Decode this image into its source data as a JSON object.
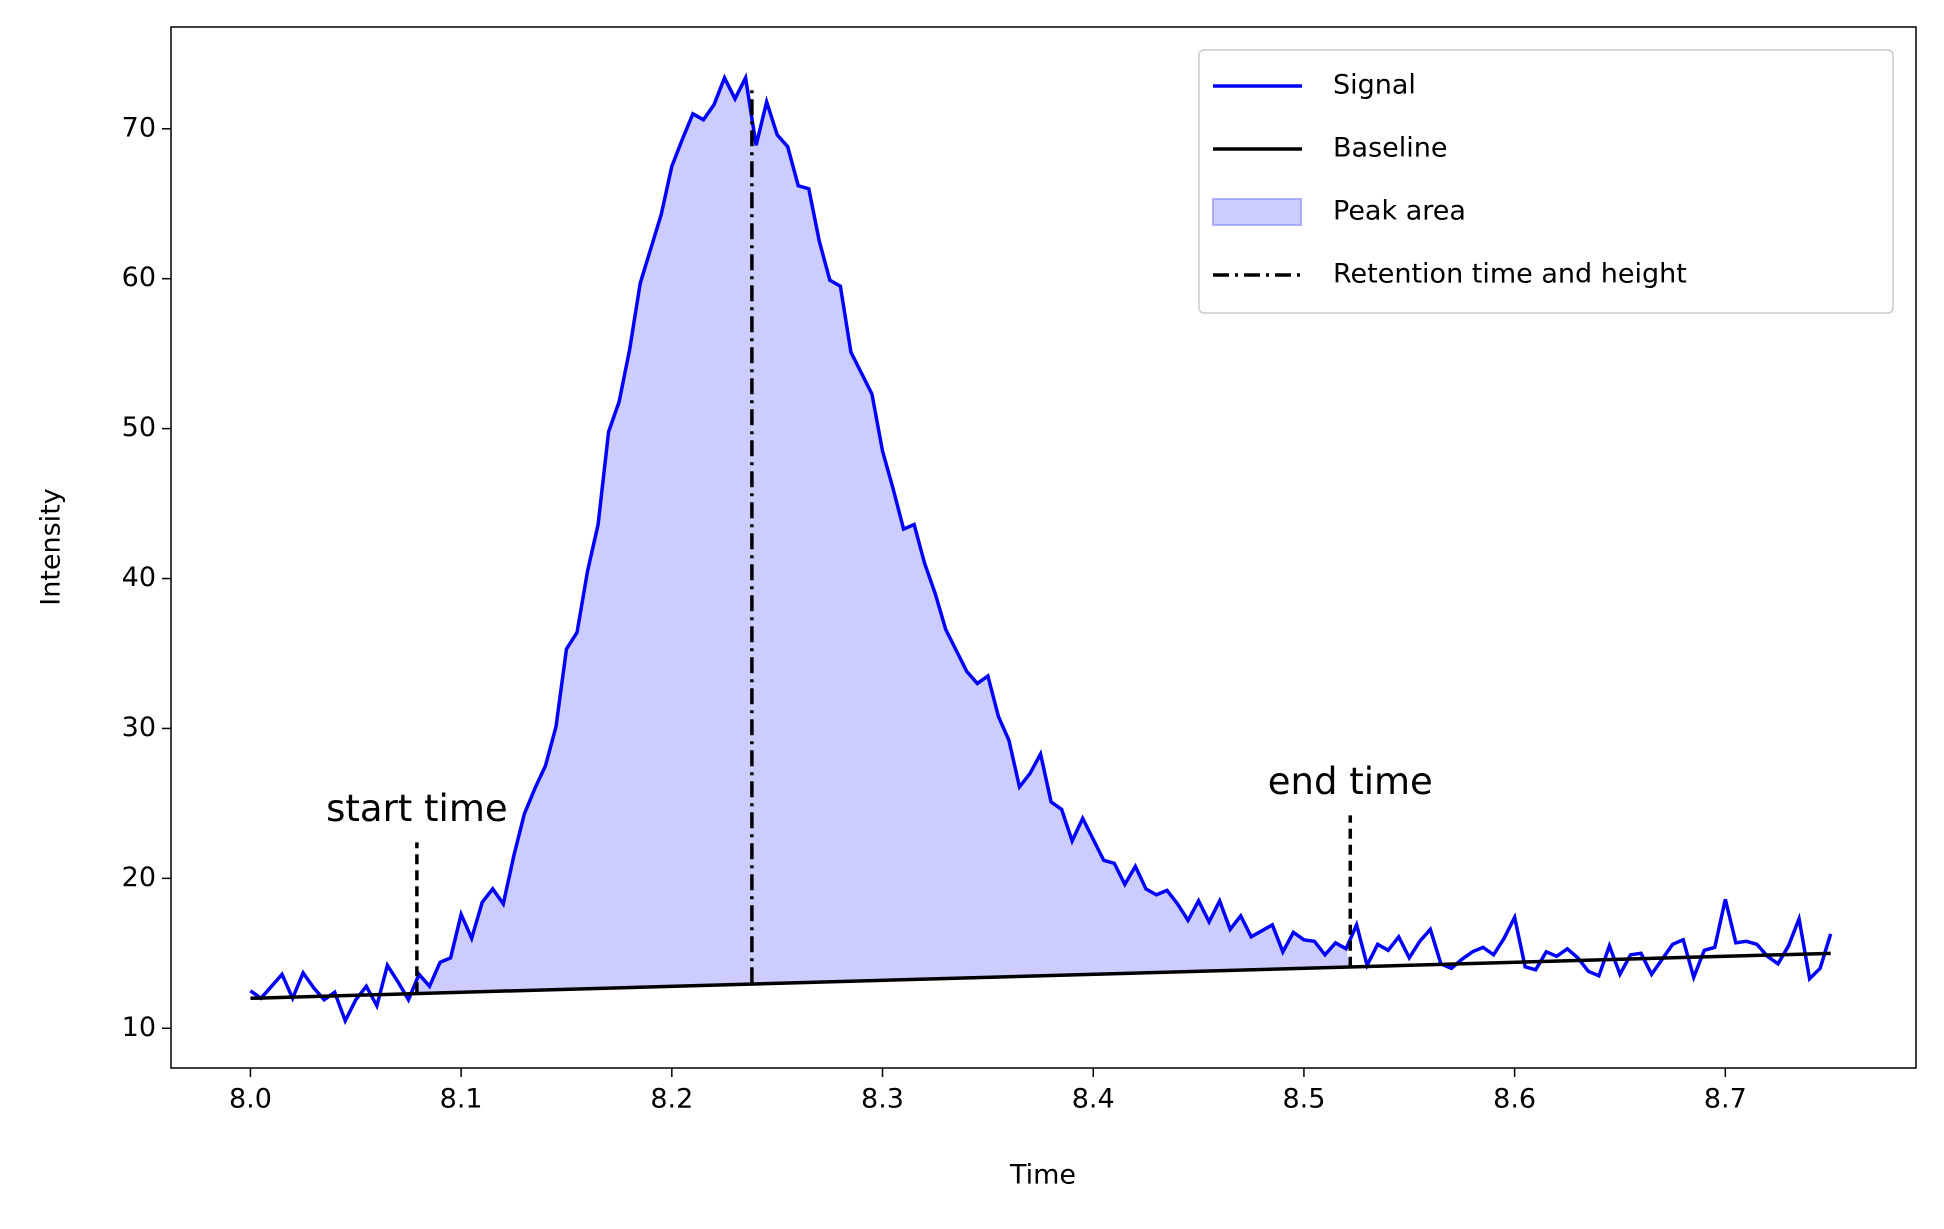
{
  "chart_data": {
    "type": "line",
    "xlabel": "Time",
    "ylabel": "Intensity",
    "xlim": [
      7.9623,
      8.7905
    ],
    "ylim": [
      7.35,
      76.79
    ],
    "xticks": [
      {
        "value": 8.0,
        "label": "8.0"
      },
      8.1,
      8.2,
      8.3,
      8.4,
      8.5,
      8.6,
      8.7
    ],
    "yticks": [
      10,
      20,
      30,
      40,
      50,
      60,
      70
    ],
    "legend": "upper right",
    "series": [
      {
        "name": "Signal",
        "color": "#0000ff",
        "style": "solid",
        "x": [
          8.0,
          8.005,
          8.01,
          8.015,
          8.02,
          8.025,
          8.03,
          8.035,
          8.04,
          8.045,
          8.05,
          8.055,
          8.06,
          8.065,
          8.07,
          8.075,
          8.08,
          8.085,
          8.09,
          8.095,
          8.1,
          8.105,
          8.11,
          8.115,
          8.12,
          8.125,
          8.13,
          8.135,
          8.14,
          8.145,
          8.15,
          8.155,
          8.16,
          8.165,
          8.17,
          8.175,
          8.18,
          8.185,
          8.19,
          8.195,
          8.2,
          8.205,
          8.21,
          8.215,
          8.22,
          8.225,
          8.23,
          8.235,
          8.24,
          8.245,
          8.25,
          8.255,
          8.26,
          8.265,
          8.27,
          8.275,
          8.28,
          8.285,
          8.29,
          8.295,
          8.3,
          8.305,
          8.31,
          8.315,
          8.32,
          8.325,
          8.33,
          8.335,
          8.34,
          8.345,
          8.35,
          8.355,
          8.36,
          8.365,
          8.37,
          8.375,
          8.38,
          8.385,
          8.39,
          8.395,
          8.4,
          8.405,
          8.41,
          8.415,
          8.42,
          8.425,
          8.43,
          8.435,
          8.44,
          8.445,
          8.45,
          8.455,
          8.46,
          8.465,
          8.47,
          8.475,
          8.48,
          8.485,
          8.49,
          8.495,
          8.5,
          8.505,
          8.51,
          8.515,
          8.52,
          8.525,
          8.53,
          8.535,
          8.54,
          8.545,
          8.55,
          8.555,
          8.56,
          8.565,
          8.57,
          8.575,
          8.58,
          8.585,
          8.59,
          8.595,
          8.6,
          8.605,
          8.61,
          8.615,
          8.62,
          8.625,
          8.63,
          8.635,
          8.64,
          8.645,
          8.65,
          8.655,
          8.66,
          8.665,
          8.67,
          8.675,
          8.68,
          8.685,
          8.69,
          8.695,
          8.7,
          8.705,
          8.71,
          8.715,
          8.72,
          8.725,
          8.73,
          8.735,
          8.74,
          8.745,
          8.75
        ],
        "values": [
          12.5,
          12.0,
          12.8,
          13.6,
          12.0,
          13.7,
          12.7,
          11.9,
          12.4,
          10.5,
          11.9,
          12.8,
          11.5,
          14.2,
          13.1,
          11.9,
          13.6,
          12.8,
          14.4,
          14.7,
          17.6,
          16.0,
          18.4,
          19.3,
          18.3,
          21.5,
          24.3,
          26.0,
          27.5,
          30.1,
          35.3,
          36.4,
          40.5,
          43.6,
          49.8,
          51.8,
          55.3,
          59.7,
          62.0,
          64.3,
          67.5,
          69.3,
          71.0,
          70.6,
          71.6,
          73.4,
          72.0,
          73.4,
          68.9,
          71.8,
          69.6,
          68.8,
          66.2,
          66.0,
          62.5,
          59.9,
          59.5,
          55.1,
          53.7,
          52.3,
          48.5,
          46.0,
          43.3,
          43.6,
          41.0,
          39.0,
          36.6,
          35.2,
          33.8,
          33.0,
          33.5,
          30.8,
          29.2,
          26.1,
          27.0,
          28.3,
          25.1,
          24.6,
          22.5,
          24.0,
          22.6,
          21.2,
          21.0,
          19.6,
          20.8,
          19.3,
          18.9,
          19.2,
          18.3,
          17.2,
          18.5,
          17.1,
          18.5,
          16.6,
          17.5,
          16.1,
          16.5,
          16.9,
          15.1,
          16.4,
          15.9,
          15.8,
          14.9,
          15.7,
          15.3,
          16.9,
          14.2,
          15.6,
          15.2,
          16.1,
          14.7,
          15.8,
          16.6,
          14.3,
          14.0,
          14.6,
          15.1,
          15.4,
          14.9,
          16.0,
          17.4,
          14.1,
          13.9,
          15.1,
          14.8,
          15.3,
          14.7,
          13.8,
          13.5,
          15.5,
          13.6,
          14.9,
          15.0,
          13.6,
          14.6,
          15.6,
          15.9,
          13.4,
          15.2,
          15.4,
          18.6,
          15.7,
          15.8,
          15.6,
          14.8,
          14.3,
          15.5,
          17.3,
          13.3,
          14.0,
          16.3
        ]
      },
      {
        "name": "Baseline",
        "color": "#000000",
        "style": "solid",
        "x": [
          8.0,
          8.75
        ],
        "values": [
          12.0,
          15.0
        ]
      },
      {
        "name": "Peak area",
        "color": "#ccccff",
        "style": "fill",
        "x": [
          8.079,
          8.522
        ]
      },
      {
        "name": "Retention time and height",
        "color": "#000000",
        "style": "dashdot",
        "x": [
          8.238,
          8.238
        ],
        "values": [
          13.0,
          72.6
        ]
      }
    ],
    "annotations": [
      {
        "text": "start time",
        "x": 8.079,
        "y": [
          12.4,
          22.4
        ]
      },
      {
        "text": "end time",
        "x": 8.522,
        "y": [
          14.1,
          24.2
        ]
      }
    ]
  }
}
